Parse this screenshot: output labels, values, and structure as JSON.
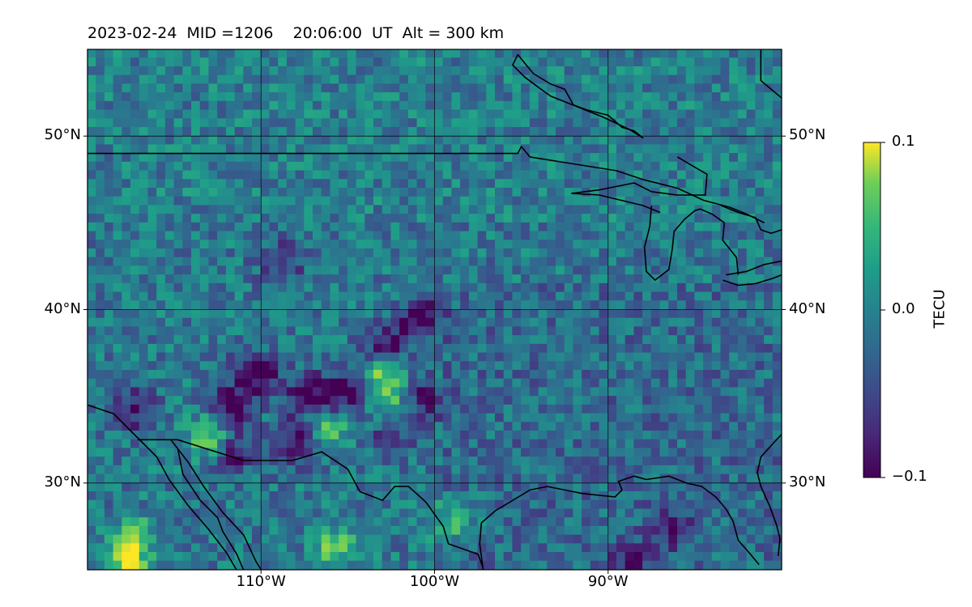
{
  "chart_data": {
    "type": "heatmap",
    "title": "2023-02-24  MID =1206    20:06:00  UT  Alt = 300 km",
    "colormap": "viridis",
    "projection": "equirectangular map with coastlines and national borders",
    "lon_range": [
      -120,
      -80
    ],
    "lat_range": [
      25,
      55
    ],
    "grid": true,
    "x_ticks": [
      {
        "value": -110,
        "label": "110°W"
      },
      {
        "value": -100,
        "label": "100°W"
      },
      {
        "value": -90,
        "label": "90°W"
      }
    ],
    "y_ticks": [
      {
        "value": 30,
        "label": "30°N"
      },
      {
        "value": 40,
        "label": "40°N"
      },
      {
        "value": 50,
        "label": "50°N"
      }
    ],
    "colorbar": {
      "label": "TECU",
      "min": -0.1,
      "max": 0.1,
      "ticks": [
        {
          "value": 0.1,
          "label": "0.1"
        },
        {
          "value": 0.0,
          "label": "0.0"
        },
        {
          "value": -0.1,
          "label": "−0.1"
        }
      ]
    },
    "features": [
      {
        "type": "high",
        "lon": -113,
        "lat": 32.8,
        "value": 0.1
      },
      {
        "type": "high",
        "lon": -106.5,
        "lat": 33.6,
        "value": 0.08
      },
      {
        "type": "high",
        "lon": -102.5,
        "lat": 34.3,
        "value": 0.1
      },
      {
        "type": "high",
        "lon": -103,
        "lat": 36.7,
        "value": 0.1
      },
      {
        "type": "high",
        "lon": -117.5,
        "lat": 27,
        "value": 0.07
      },
      {
        "type": "high",
        "lon": -106,
        "lat": 26.5,
        "value": 0.07
      },
      {
        "type": "high",
        "lon": -99,
        "lat": 28,
        "value": 0.06
      },
      {
        "type": "high",
        "lon": -118,
        "lat": 25.3,
        "value": 0.1
      },
      {
        "type": "low",
        "lon": -110.5,
        "lat": 36.5,
        "value": -0.1
      },
      {
        "type": "low",
        "lon": -107.5,
        "lat": 35.3,
        "value": -0.1
      },
      {
        "type": "low",
        "lon": -105.5,
        "lat": 35.3,
        "value": -0.09
      },
      {
        "type": "low",
        "lon": -101,
        "lat": 35,
        "value": -0.1
      },
      {
        "type": "low",
        "lon": -103,
        "lat": 38,
        "value": -0.1
      },
      {
        "type": "low",
        "lon": -101,
        "lat": 39.7,
        "value": -0.1
      },
      {
        "type": "low",
        "lon": -112,
        "lat": 32,
        "value": -0.1
      },
      {
        "type": "low",
        "lon": -112,
        "lat": 34.7,
        "value": -0.09
      },
      {
        "type": "low",
        "lon": -108,
        "lat": 32.7,
        "value": -0.09
      },
      {
        "type": "low",
        "lon": -117.5,
        "lat": 34.5,
        "value": -0.08
      },
      {
        "type": "low",
        "lon": -102.6,
        "lat": 33.2,
        "value": -0.09
      },
      {
        "type": "low",
        "lon": -89,
        "lat": 25.7,
        "value": -0.06
      },
      {
        "type": "low",
        "lon": -86.5,
        "lat": 27.5,
        "value": -0.05
      },
      {
        "type": "low",
        "lon": -109,
        "lat": 42.9,
        "value": -0.06
      }
    ]
  }
}
